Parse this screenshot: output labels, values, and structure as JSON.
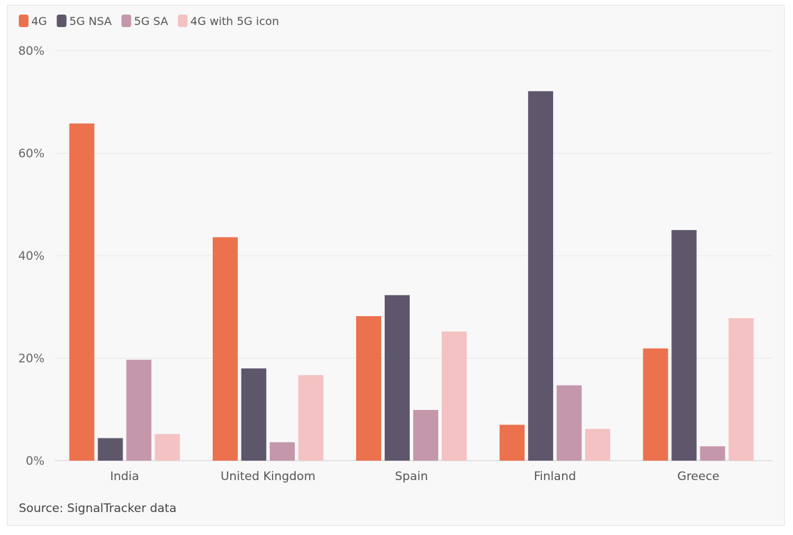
{
  "chart_data": {
    "type": "bar",
    "categories": [
      "India",
      "United Kingdom",
      "Spain",
      "Finland",
      "Greece"
    ],
    "series": [
      {
        "name": "4G",
        "color": "#ec714d",
        "values": [
          65.8,
          43.6,
          28.2,
          7.0,
          21.9
        ]
      },
      {
        "name": "5G NSA",
        "color": "#5e566b",
        "values": [
          4.4,
          18.0,
          32.3,
          72.1,
          45.0
        ]
      },
      {
        "name": "5G SA",
        "color": "#c497ab",
        "values": [
          19.7,
          3.6,
          9.9,
          14.7,
          2.8
        ]
      },
      {
        "name": "4G with 5G icon",
        "color": "#f4c2c2",
        "values": [
          5.2,
          16.7,
          25.2,
          6.2,
          27.8
        ]
      }
    ],
    "ylim": [
      0,
      80
    ],
    "yticks": [
      0,
      20,
      40,
      60,
      80
    ],
    "ytick_format": "%",
    "grid": true,
    "legend_position": "top-left",
    "title": "",
    "xlabel": "",
    "ylabel": ""
  },
  "source": "Source: SignalTracker data",
  "colors": {
    "background": "#f8f8f8",
    "grid": "#e8e8e8",
    "axis": "#d0d0d0"
  }
}
